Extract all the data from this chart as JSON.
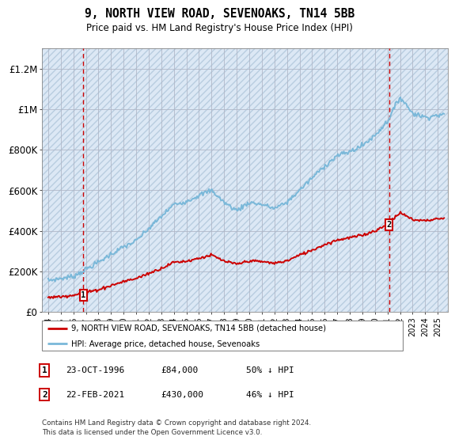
{
  "title": "9, NORTH VIEW ROAD, SEVENOAKS, TN14 5BB",
  "subtitle": "Price paid vs. HM Land Registry's House Price Index (HPI)",
  "legend_line1": "9, NORTH VIEW ROAD, SEVENOAKS, TN14 5BB (detached house)",
  "legend_line2": "HPI: Average price, detached house, Sevenoaks",
  "footer": "Contains HM Land Registry data © Crown copyright and database right 2024.\nThis data is licensed under the Open Government Licence v3.0.",
  "transaction1_date": "23-OCT-1996",
  "transaction1_price": "£84,000",
  "transaction1_hpi": "50% ↓ HPI",
  "transaction1_year": 1996.8,
  "transaction1_value": 84000,
  "transaction2_date": "22-FEB-2021",
  "transaction2_price": "£430,000",
  "transaction2_hpi": "46% ↓ HPI",
  "transaction2_year": 2021.13,
  "transaction2_value": 430000,
  "hpi_color": "#7ab8d9",
  "price_color": "#cc0000",
  "ylim_max": 1300000,
  "ylim_min": 0,
  "yticks": [
    0,
    200000,
    400000,
    600000,
    800000,
    1000000,
    1200000
  ],
  "ytick_labels": [
    "£0",
    "£200K",
    "£400K",
    "£600K",
    "£800K",
    "£1M",
    "£1.2M"
  ],
  "hpi_years": [
    1994,
    1995,
    1996,
    1997,
    1998,
    1999,
    2000,
    2001,
    2002,
    2003,
    2004,
    2005,
    2006,
    2007,
    2008,
    2009,
    2010,
    2011,
    2012,
    2013,
    2014,
    2015,
    2016,
    2017,
    2018,
    2019,
    2020,
    2021,
    2022,
    2023,
    2024,
    2025
  ],
  "hpi_vals": [
    155000,
    165000,
    175000,
    210000,
    245000,
    285000,
    320000,
    350000,
    410000,
    470000,
    530000,
    545000,
    575000,
    600000,
    540000,
    500000,
    540000,
    530000,
    510000,
    540000,
    600000,
    660000,
    720000,
    770000,
    790000,
    820000,
    870000,
    940000,
    1060000,
    980000,
    960000,
    970000
  ],
  "price_years": [
    1994,
    1995,
    1996,
    1997,
    1998,
    1999,
    2000,
    2001,
    2002,
    2003,
    2004,
    2005,
    2006,
    2007,
    2008,
    2009,
    2010,
    2011,
    2012,
    2013,
    2014,
    2015,
    2016,
    2017,
    2018,
    2019,
    2020,
    2021,
    2022,
    2023,
    2024,
    2025
  ],
  "price_vals": [
    72000,
    75000,
    84000,
    95000,
    110000,
    130000,
    150000,
    165000,
    190000,
    215000,
    245000,
    250000,
    265000,
    280000,
    250000,
    235000,
    252000,
    248000,
    240000,
    252000,
    280000,
    305000,
    332000,
    355000,
    366000,
    378000,
    400000,
    430000,
    490000,
    455000,
    450000,
    460000
  ],
  "xlim_min": 1993.5,
  "xlim_max": 2025.8
}
